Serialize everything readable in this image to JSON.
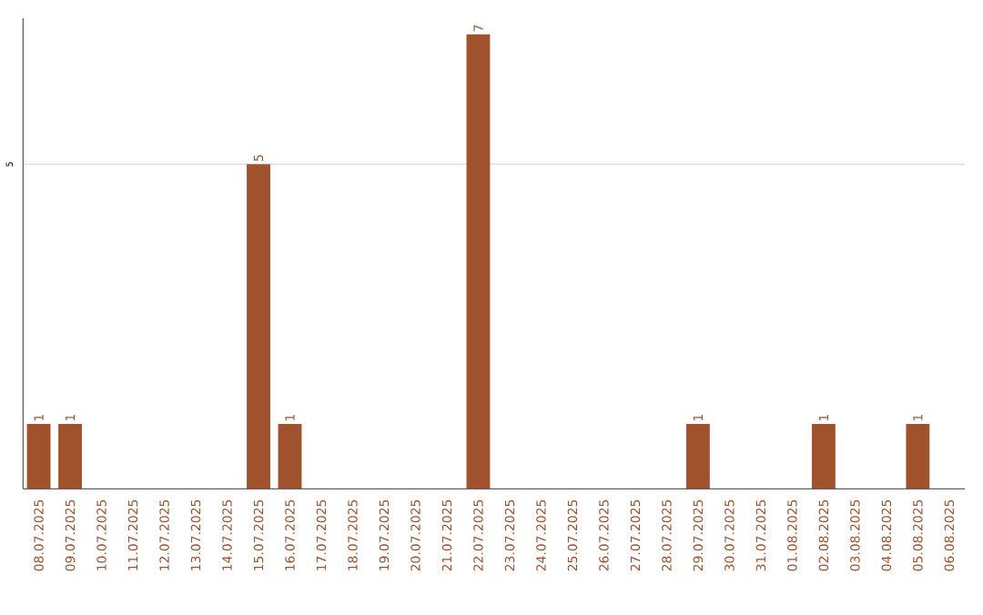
{
  "chart_data": {
    "type": "bar",
    "categories": [
      "08.07.2025",
      "09.07.2025",
      "10.07.2025",
      "11.07.2025",
      "12.07.2025",
      "13.07.2025",
      "14.07.2025",
      "15.07.2025",
      "16.07.2025",
      "17.07.2025",
      "18.07.2025",
      "19.07.2025",
      "20.07.2025",
      "21.07.2025",
      "22.07.2025",
      "23.07.2025",
      "24.07.2025",
      "25.07.2025",
      "26.07.2025",
      "27.07.2025",
      "28.07.2025",
      "29.07.2025",
      "30.07.2025",
      "31.07.2025",
      "01.08.2025",
      "02.08.2025",
      "03.08.2025",
      "04.08.2025",
      "05.08.2025",
      "06.08.2025"
    ],
    "values": [
      1,
      1,
      0,
      0,
      0,
      0,
      0,
      5,
      1,
      0,
      0,
      0,
      0,
      0,
      7,
      0,
      0,
      0,
      0,
      0,
      0,
      1,
      0,
      0,
      0,
      1,
      0,
      0,
      1,
      0
    ],
    "value_labels": [
      "1",
      "1",
      null,
      null,
      null,
      null,
      null,
      "5",
      "1",
      null,
      null,
      null,
      null,
      null,
      "7",
      null,
      null,
      null,
      null,
      null,
      null,
      "1",
      null,
      null,
      null,
      "1",
      null,
      null,
      "1",
      null
    ],
    "color": "#a0522d",
    "ylim": [
      0,
      7.25
    ],
    "yticks": [
      5
    ],
    "grid": "y"
  }
}
